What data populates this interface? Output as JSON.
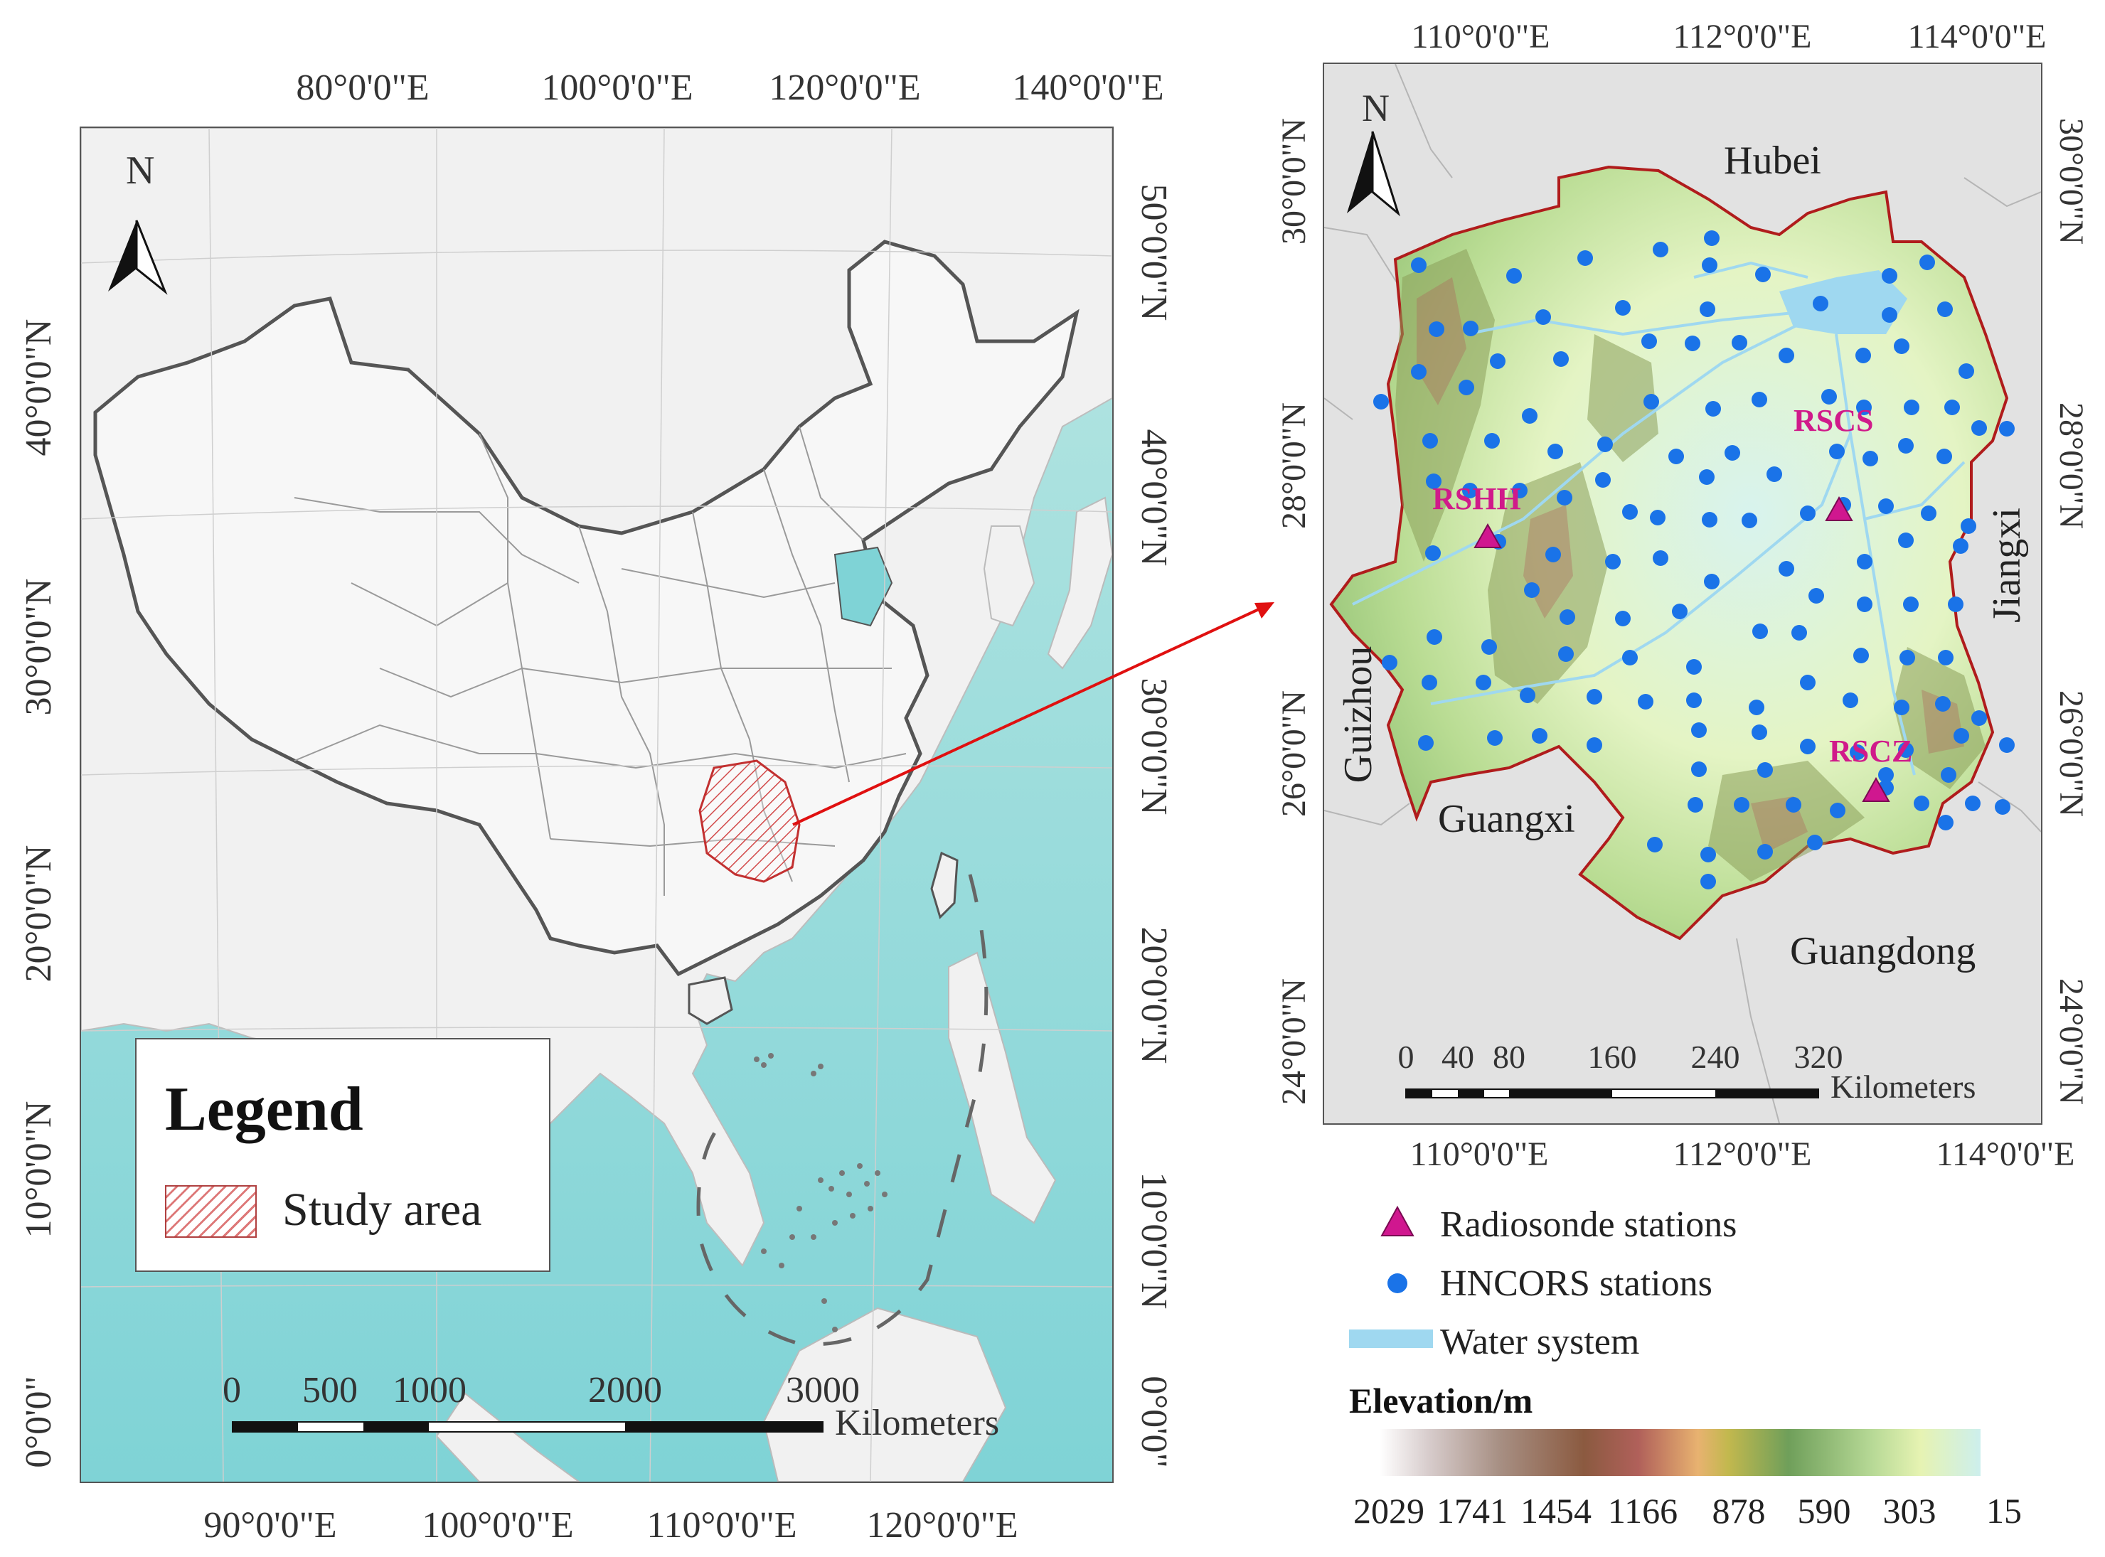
{
  "left_map": {
    "top_lon_labels": [
      "80°0'0\"E",
      "100°0'0\"E",
      "120°0'0\"E",
      "140°0'0\"E"
    ],
    "bottom_lon_labels": [
      "90°0'0\"E",
      "100°0'0\"E",
      "110°0'0\"E",
      "120°0'0\"E"
    ],
    "left_lat_labels": [
      "40°0'0\"N",
      "30°0'0\"N",
      "20°0'0\"N",
      "10°0'0\"N",
      "0°0'0\""
    ],
    "right_lat_labels": [
      "50°0'0\"N",
      "40°0'0\"N",
      "30°0'0\"N",
      "20°0'0\"N",
      "10°0'0\"N",
      "0°0'0\""
    ],
    "north_label": "N",
    "legend": {
      "title": "Legend",
      "item": "Study area"
    },
    "scale": {
      "ticks": [
        "0",
        "500",
        "1000",
        "2000",
        "3000"
      ],
      "unit": "Kilometers"
    },
    "colors": {
      "sea": "#7fd3d6",
      "land": "#f1f1f1",
      "border": "#666666",
      "study_area": "#c23030",
      "arrow": "#e01010"
    }
  },
  "right_map": {
    "top_lon_labels": [
      "110°0'0\"E",
      "112°0'0\"E",
      "114°0'0\"E"
    ],
    "bottom_lon_labels": [
      "110°0'0\"E",
      "112°0'0\"E",
      "114°0'0\"E"
    ],
    "left_lat_labels": [
      "30°0'0\"N",
      "28°0'0\"N",
      "26°0'0\"N",
      "24°0'0\"N"
    ],
    "right_lat_labels": [
      "30°0'0\"N",
      "28°0'0\"N",
      "26°0'0\"N",
      "24°0'0\"N"
    ],
    "north_label": "N",
    "neighbors": {
      "hubei": "Hubei",
      "jiangxi": "Jiangxi",
      "guizhou": "Guizhou",
      "guangxi": "Guangxi",
      "guangdong": "Guangdong"
    },
    "radiosonde_stations": [
      {
        "name": "RSCS",
        "lon": 112.8,
        "lat": 28.1
      },
      {
        "name": "RSHH",
        "lon": 110.0,
        "lat": 27.6
      },
      {
        "name": "RSCZ",
        "lon": 113.0,
        "lat": 25.8
      }
    ],
    "scale": {
      "ticks": [
        "0",
        "40",
        "80",
        "160",
        "240",
        "320"
      ],
      "unit": "Kilometers"
    },
    "colors": {
      "background": "#e2e2e2",
      "outline": "#b01c1c",
      "hncors": "#1a73e8",
      "radiosonde": "#d0178f",
      "water": "#9fd8f0"
    }
  },
  "station_legend": {
    "radiosonde": "Radiosonde stations",
    "hncors": "HNCORS stations",
    "water": "Water system"
  },
  "elevation_legend": {
    "title": "Elevation/m",
    "labels": [
      "2029",
      "1741",
      "1454",
      "1166",
      "878",
      "590",
      "303",
      "15"
    ]
  }
}
